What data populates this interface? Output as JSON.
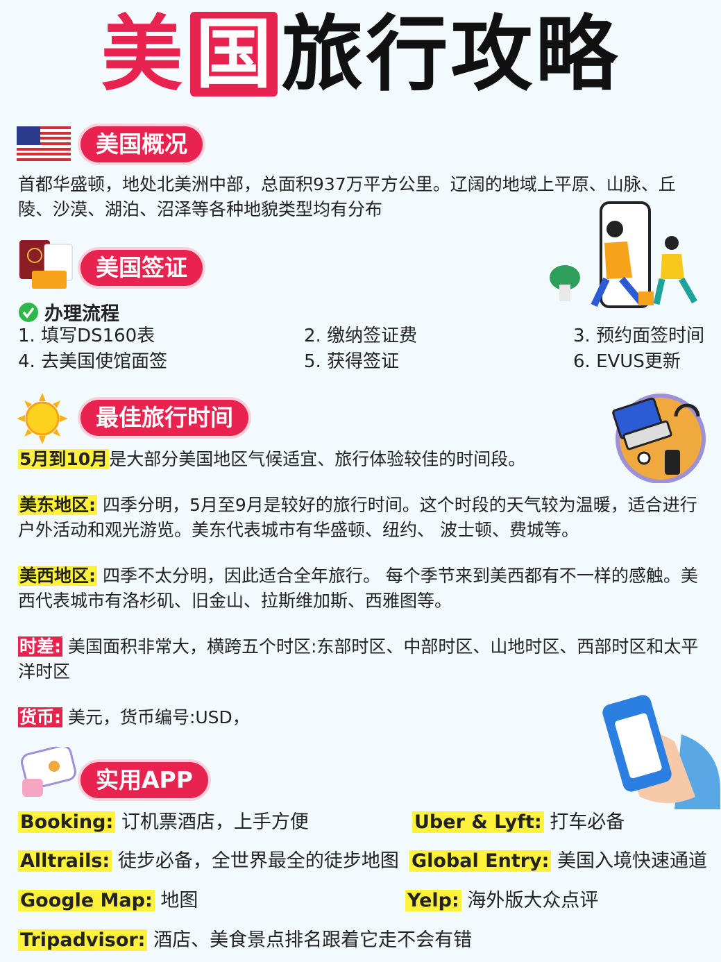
{
  "title": {
    "part1": "美",
    "part2": "国",
    "part3": "旅行攻略"
  },
  "overview": {
    "heading": "美国概况",
    "text": "首都华盛顿，地处北美洲中部，总面积937万平方公里。辽阔的地域上平原、山脉、丘陵、沙漠、湖泊、沼泽等各种地貌类型均有分布"
  },
  "visa": {
    "heading": "美国签证",
    "process_title": "办理流程",
    "steps": [
      "1. 填写DS160表",
      "2. 缴纳签证费",
      "3. 预约面签时间",
      "4. 去美国使馆面签",
      "5. 获得签证",
      "6. EVUS更新"
    ]
  },
  "best_time": {
    "heading": "最佳旅行时间",
    "intro_highlight": "5月到10月",
    "intro_text": "是大部分美国地区气候适宜、旅行体验较佳的时间段。",
    "east_label": "美东地区:",
    "east_text": " 四季分明，5月至9月是较好的旅行时间。这个时段的天气较为温暖，适合进行户外活动和观光游览。美东代表城市有华盛顿、纽约、 波士顿、费城等。",
    "west_label": "美西地区:",
    "west_text": " 四季不太分明，因此适合全年旅行。 每个季节来到美西都有不一样的感触。美西代表城市有洛杉矶、旧金山、拉斯维加斯、西雅图等。",
    "tz_label": "时差:",
    "tz_text": " 美国面积非常大，横跨五个时区:东部时区、中部时区、山地时区、西部时区和太平洋时区",
    "currency_label": "货币:",
    "currency_text": " 美元，货币编号:USD，"
  },
  "apps": {
    "heading": "实用APP",
    "items": [
      {
        "name": "Booking:",
        "desc": " 订机票酒店，上手方便"
      },
      {
        "name": "Uber & Lyft:",
        "desc": " 打车必备"
      },
      {
        "name": "Alltrails:",
        "desc": " 徒步必备，全世界最全的徒步地图"
      },
      {
        "name": "Global Entry:",
        "desc": " 美国入境快速通道"
      },
      {
        "name": "Google Map:",
        "desc": " 地图"
      },
      {
        "name": "Yelp:",
        "desc": " 海外版大众点评"
      },
      {
        "name": "Tripadvisor:",
        "desc": " 酒店、美食景点排名跟着它走不会有错"
      }
    ]
  },
  "colors": {
    "accent": "#e8234f",
    "highlight": "#fff23a",
    "background": "#f3fafd"
  }
}
